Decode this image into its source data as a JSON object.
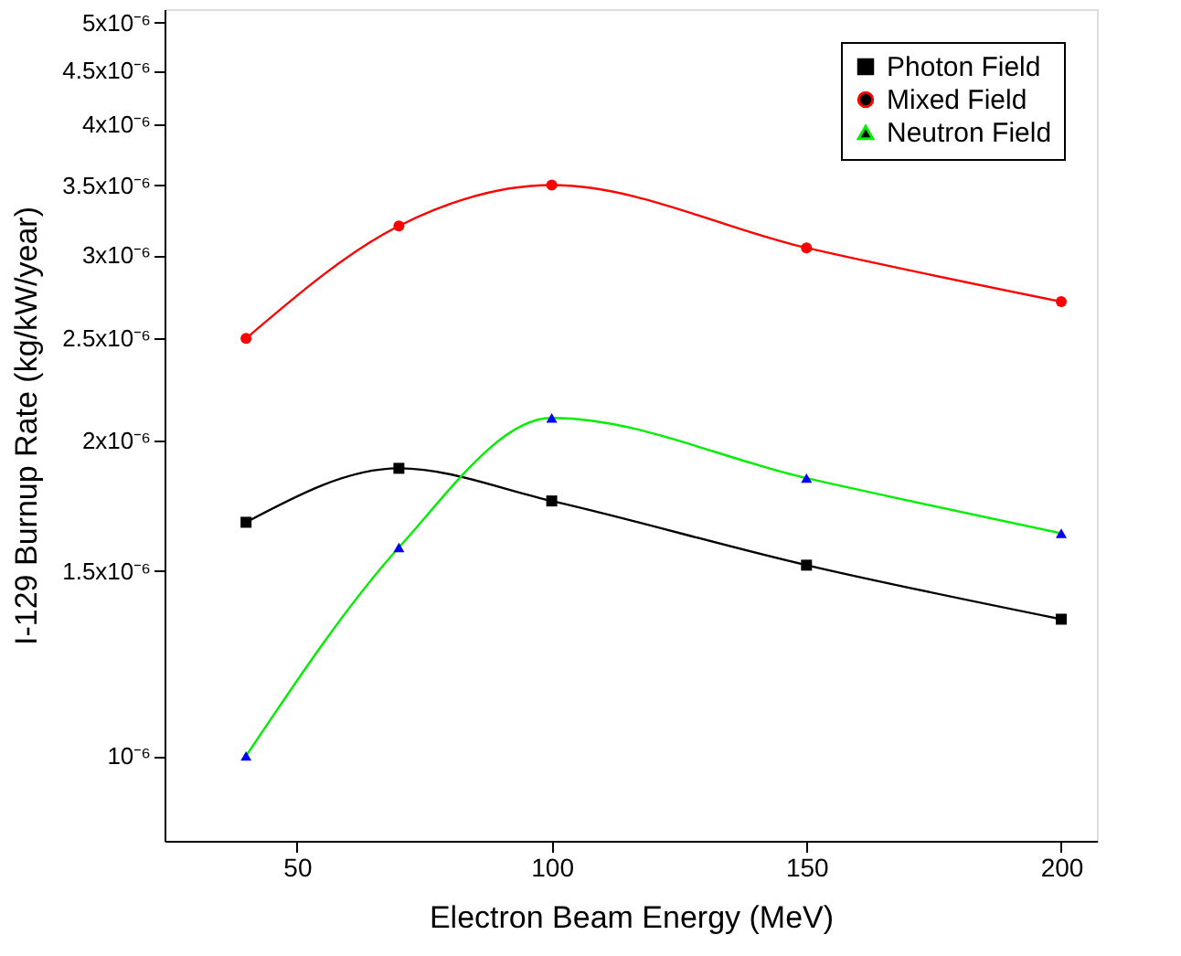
{
  "chart_data": {
    "type": "line",
    "xlabel": "Electron Beam Energy (MeV)",
    "ylabel": "I-129 Burnup Rate (kg/kW/year)",
    "x": [
      40,
      70,
      100,
      150,
      200
    ],
    "series": [
      {
        "name": "Photon Field",
        "color": "#000000",
        "marker": "square",
        "colors": [
          "#000000",
          "#000000",
          "#000000",
          "#000000",
          "#000000"
        ],
        "values": [
          1.67e-06,
          1.88e-06,
          1.75e-06,
          1.52e-06,
          1.35e-06
        ]
      },
      {
        "name": "Mixed Field",
        "color": "#ff0000",
        "marker": "circle",
        "colors": [
          "#ff0000",
          "#ff0000",
          "#ff0000",
          "#ff0000",
          "#ff0000"
        ],
        "values": [
          2.5e-06,
          3.2e-06,
          3.5e-06,
          3.05e-06,
          2.71e-06
        ]
      },
      {
        "name": "Neutron Field",
        "color": "#00ee00",
        "marker": "triangle",
        "colors": [
          "#0000ff",
          "#0000ff",
          "#0000ff",
          "#0000ff",
          "#0000ff"
        ],
        "values": [
          1e-06,
          1.58e-06,
          2.1e-06,
          1.84e-06,
          1.63e-06
        ]
      }
    ],
    "log": "y",
    "xlim": [
      24,
      207
    ],
    "xticks": [
      50,
      100,
      150,
      200
    ],
    "ylim": [
      8.3e-07,
      5.15e-06
    ],
    "yticks": [
      {
        "value": 1e-06,
        "label": "10⁻⁶"
      },
      {
        "value": 1.5e-06,
        "label": "1.5x10⁻⁶"
      },
      {
        "value": 2e-06,
        "label": "2x10⁻⁶"
      },
      {
        "value": 2.5e-06,
        "label": "2.5x10⁻⁶"
      },
      {
        "value": 3e-06,
        "label": "3x10⁻⁶"
      },
      {
        "value": 3.5e-06,
        "label": "3.5x10⁻⁶"
      },
      {
        "value": 4e-06,
        "label": "4x10⁻⁶"
      },
      {
        "value": 4.5e-06,
        "label": "4.5x10⁻⁶"
      },
      {
        "value": 5e-06,
        "label": "5x10⁻⁶"
      }
    ],
    "grid": false,
    "legend": "top right",
    "line_style": "solid"
  }
}
